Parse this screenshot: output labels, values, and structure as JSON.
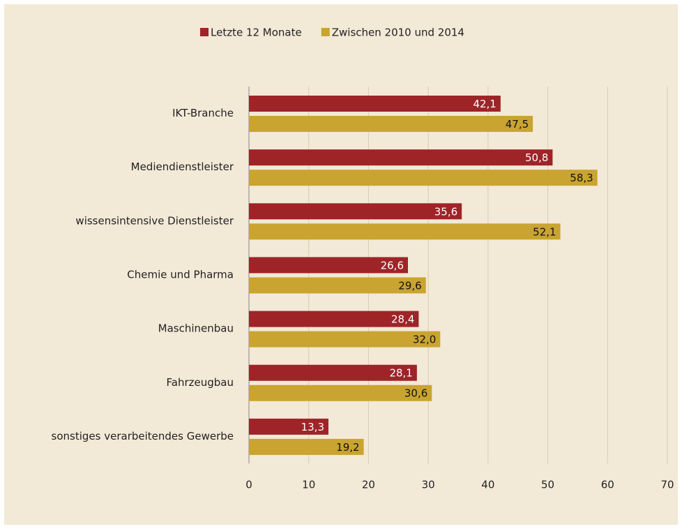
{
  "chart_data": {
    "type": "hbar",
    "categories": [
      "IKT-Branche",
      "Mediendienstleister",
      "wissensintensive Dienstleister",
      "Chemie und Pharma",
      "Maschinenbau",
      "Fahrzeugbau",
      "sonstiges verarbeitendes Gewerbe"
    ],
    "series": [
      {
        "name": "Letzte 12 Monate",
        "color": "#9e2428",
        "values": [
          42.1,
          50.8,
          35.6,
          26.6,
          28.4,
          28.1,
          13.3
        ],
        "value_labels": [
          "42,1",
          "50,8",
          "35,6",
          "26,6",
          "28,4",
          "28,1",
          "13,3"
        ]
      },
      {
        "name": "Zwischen 2010 und 2014",
        "color": "#c9a431",
        "values": [
          47.5,
          58.3,
          52.1,
          29.6,
          32.0,
          30.6,
          19.2
        ],
        "value_labels": [
          "47,5",
          "58,3",
          "52,1",
          "29,6",
          "32,0",
          "30,6",
          "19,2"
        ]
      }
    ],
    "xlim": [
      0,
      70
    ],
    "xticks": [
      0,
      10,
      20,
      30,
      40,
      50,
      60,
      70
    ],
    "grid": true,
    "legend": "top"
  }
}
